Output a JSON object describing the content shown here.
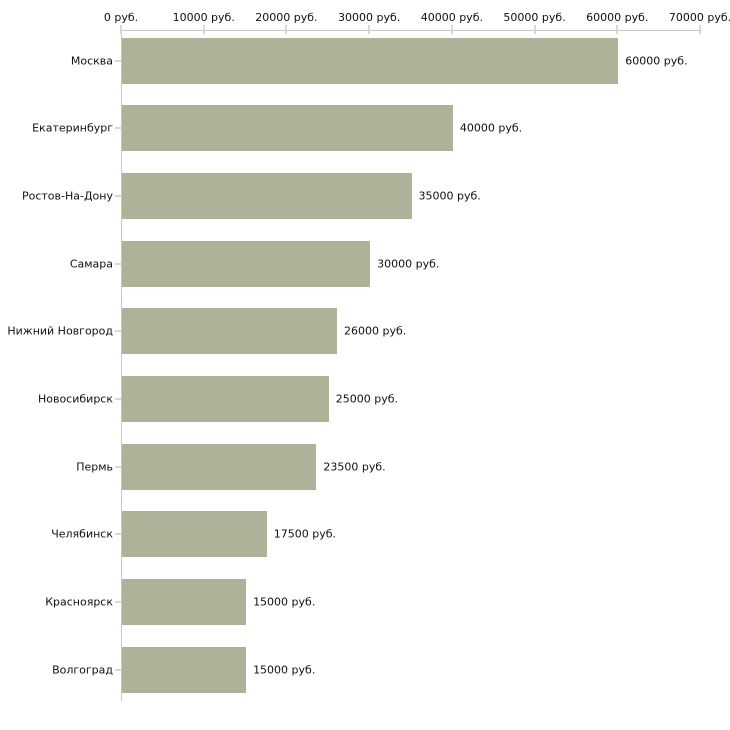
{
  "chart_data": {
    "type": "bar",
    "orientation": "horizontal",
    "title": "",
    "xlabel": "",
    "ylabel": "",
    "unit": "руб.",
    "grid": false,
    "legend": null,
    "xlim": [
      0,
      70000
    ],
    "x_ticks": {
      "values": [
        0,
        10000,
        20000,
        30000,
        40000,
        50000,
        60000,
        70000
      ],
      "labels": [
        "0 руб.",
        "10000 руб.",
        "20000 руб.",
        "30000 руб.",
        "40000 руб.",
        "50000 руб.",
        "60000 руб.",
        "70000 руб."
      ]
    },
    "categories": [
      "Москва",
      "Екатеринбург",
      "Ростов-На-Дону",
      "Самара",
      "Нижний Новгород",
      "Новосибирск",
      "Пермь",
      "Челябинск",
      "Красноярск",
      "Волгоград"
    ],
    "values": [
      60000,
      40000,
      35000,
      30000,
      26000,
      25000,
      23500,
      17500,
      15000,
      15000
    ],
    "bar_labels": [
      "60000 руб.",
      "40000 руб.",
      "35000 руб.",
      "30000 руб.",
      "26000 руб.",
      "25000 руб.",
      "23500 руб.",
      "17500 руб.",
      "15000 руб.",
      "15000 руб."
    ]
  },
  "style": {
    "background": "#ffffff",
    "bar_color": "#adb398",
    "axis_line_color": "#c8c8c8",
    "tick_mark_color": "#d9ddb5",
    "text_color": "#111111"
  }
}
